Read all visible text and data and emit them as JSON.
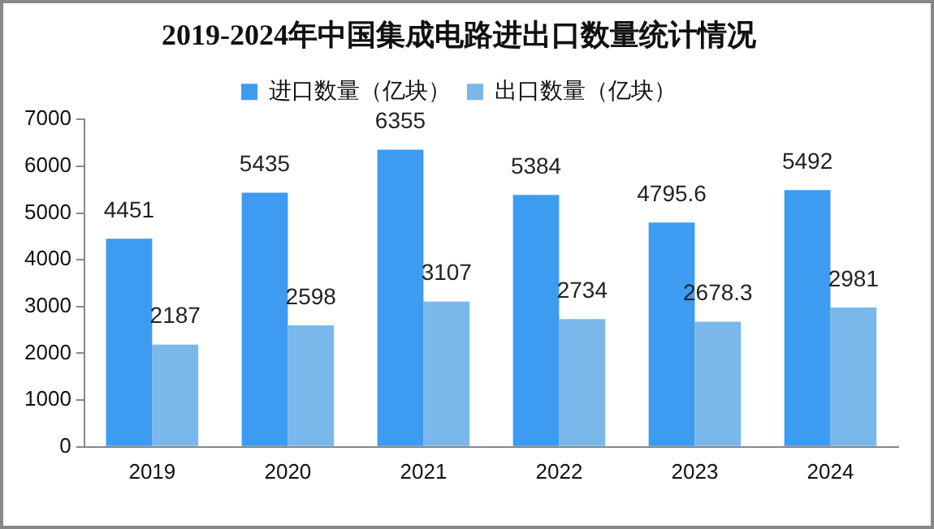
{
  "chart_data": {
    "type": "bar",
    "title": "2019-2024年中国集成电路进出口数量统计情况",
    "categories": [
      "2019",
      "2020",
      "2021",
      "2022",
      "2023",
      "2024"
    ],
    "series": [
      {
        "name": "进口数量（亿块）",
        "color": "#3d9bf0",
        "values": [
          4451,
          5435,
          6355,
          5384,
          4795.6,
          5492
        ]
      },
      {
        "name": "出口数量（亿块）",
        "color": "#7ab8ec",
        "values": [
          2187,
          2598,
          3107,
          2734,
          2678.3,
          2981
        ]
      }
    ],
    "ylim": [
      0,
      7000
    ],
    "yticks": [
      0,
      1000,
      2000,
      3000,
      4000,
      5000,
      6000,
      7000
    ],
    "grid": false,
    "legend": "top",
    "data_labels": true
  }
}
